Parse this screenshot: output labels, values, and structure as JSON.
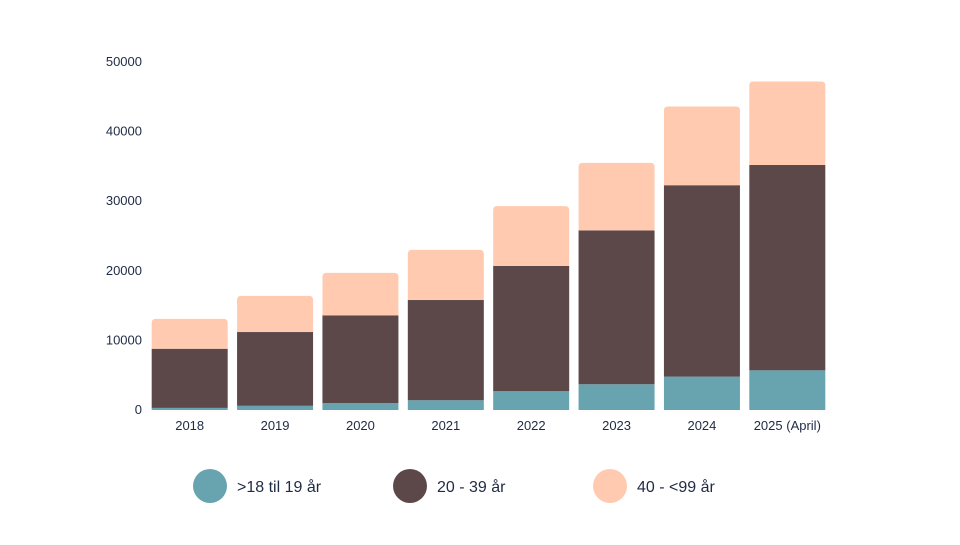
{
  "chart_data": {
    "type": "bar",
    "stacked": true,
    "categories": [
      "2018",
      "2019",
      "2020",
      "2021",
      "2022",
      "2023",
      "2024",
      "2025 (April)"
    ],
    "series": [
      {
        "name": ">18 til 19 år",
        "color": "#68a3b0",
        "values": [
          300,
          600,
          1000,
          1400,
          2700,
          3700,
          4800,
          5700
        ]
      },
      {
        "name": "20 - 39 år",
        "color": "#5c4849",
        "values": [
          8500,
          10600,
          12600,
          14400,
          18000,
          22100,
          27500,
          29500
        ]
      },
      {
        "name": "40 - <99 år",
        "color": "#ffcab0",
        "values": [
          4300,
          5200,
          6100,
          7200,
          8600,
          9700,
          11300,
          12000
        ]
      }
    ],
    "ylim": [
      0,
      50000
    ],
    "yticks": [
      "0",
      "10000",
      "20000",
      "30000",
      "40000",
      "50000"
    ],
    "grid": false,
    "legend_position": "bottom",
    "xlabel": "",
    "ylabel": "",
    "title": ""
  }
}
